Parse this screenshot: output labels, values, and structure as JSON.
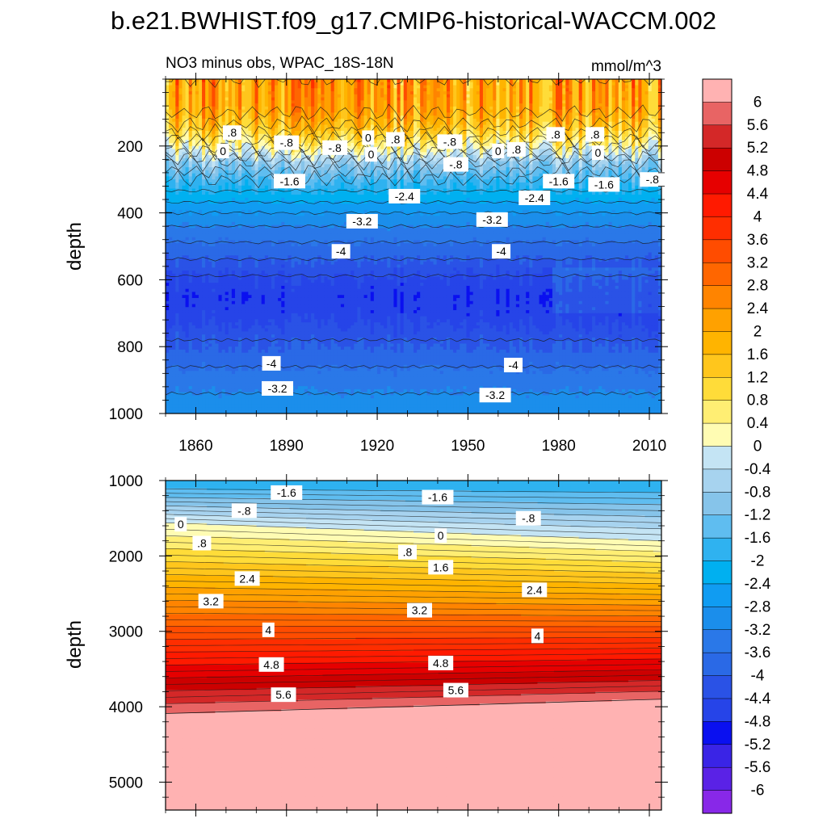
{
  "title": "b.e21.BWHIST.f09_g17.CMIP6-historical-WACCM.002",
  "subtitle_left": "NO3 minus obs, WPAC_18S-18N",
  "subtitle_right": "mmol/m^3",
  "chart_data": [
    {
      "type": "heatmap",
      "panel": "upper",
      "ylabel": "depth",
      "y_ticks": [
        200,
        400,
        600,
        800,
        1000
      ],
      "ylim": [
        0,
        1000
      ],
      "x_ticks": [
        "1860",
        "1890",
        "1920",
        "1950",
        "1980",
        "2010"
      ],
      "xlim": [
        1850,
        2014
      ],
      "y_profile": [
        {
          "depth": 50,
          "value": 2.2
        },
        {
          "depth": 100,
          "value": 2.0
        },
        {
          "depth": 150,
          "value": 1.4
        },
        {
          "depth": 200,
          "value": 0.4
        },
        {
          "depth": 250,
          "value": -0.8
        },
        {
          "depth": 300,
          "value": -1.6
        },
        {
          "depth": 350,
          "value": -2.2
        },
        {
          "depth": 400,
          "value": -2.8
        },
        {
          "depth": 450,
          "value": -3.3
        },
        {
          "depth": 500,
          "value": -3.7
        },
        {
          "depth": 550,
          "value": -4.1
        },
        {
          "depth": 600,
          "value": -4.5
        },
        {
          "depth": 650,
          "value": -4.7
        },
        {
          "depth": 700,
          "value": -4.6
        },
        {
          "depth": 750,
          "value": -4.3
        },
        {
          "depth": 800,
          "value": -4.0
        },
        {
          "depth": 850,
          "value": -3.7
        },
        {
          "depth": 900,
          "value": -3.4
        },
        {
          "depth": 950,
          "value": -3.1
        },
        {
          "depth": 1000,
          "value": -3.0
        }
      ],
      "contour_labels": [
        {
          "text": ".8",
          "x": 1872,
          "y": 160
        },
        {
          "text": "-.8",
          "x": 1890,
          "y": 190
        },
        {
          "text": "0",
          "x": 1869,
          "y": 215
        },
        {
          "text": "-.8",
          "x": 1906,
          "y": 205
        },
        {
          "text": "0",
          "x": 1917,
          "y": 175
        },
        {
          "text": ".8",
          "x": 1926,
          "y": 180
        },
        {
          "text": "0",
          "x": 1918,
          "y": 225
        },
        {
          "text": "-.8",
          "x": 1944,
          "y": 187
        },
        {
          "text": "-.8",
          "x": 1946,
          "y": 255
        },
        {
          "text": "0",
          "x": 1960,
          "y": 215
        },
        {
          "text": ".8",
          "x": 1966,
          "y": 210
        },
        {
          "text": ".8",
          "x": 1979,
          "y": 165
        },
        {
          "text": ".8",
          "x": 1992,
          "y": 165
        },
        {
          "text": "0",
          "x": 1993,
          "y": 220
        },
        {
          "text": "-1.6",
          "x": 1891,
          "y": 305
        },
        {
          "text": "-2.4",
          "x": 1929,
          "y": 350
        },
        {
          "text": "-1.6",
          "x": 1980,
          "y": 305
        },
        {
          "text": "-1.6",
          "x": 1995,
          "y": 315
        },
        {
          "text": "-.8",
          "x": 2011,
          "y": 300
        },
        {
          "text": "-2.4",
          "x": 1972,
          "y": 355
        },
        {
          "text": "-3.2",
          "x": 1915,
          "y": 425
        },
        {
          "text": "-3.2",
          "x": 1958,
          "y": 420
        },
        {
          "text": "-4",
          "x": 1908,
          "y": 515
        },
        {
          "text": "-4",
          "x": 1961,
          "y": 515
        },
        {
          "text": "-4",
          "x": 1885,
          "y": 850
        },
        {
          "text": "-4",
          "x": 1965,
          "y": 855
        },
        {
          "text": "-3.2",
          "x": 1887,
          "y": 925
        },
        {
          "text": "-3.2",
          "x": 1959,
          "y": 945
        }
      ]
    },
    {
      "type": "heatmap",
      "panel": "lower",
      "ylabel": "depth",
      "y_ticks": [
        1000,
        2000,
        3000,
        4000,
        5000
      ],
      "ylim": [
        1000,
        5370
      ],
      "x_ticks": [
        "1860",
        "1890",
        "1920",
        "1950",
        "1980",
        "2010"
      ],
      "xlim": [
        1850,
        2014
      ],
      "zero_line_depth": {
        "start": 1560,
        "end": 1800
      },
      "deep_boundary_depth": {
        "start": 4090,
        "end": 3900
      },
      "contour_labels": [
        {
          "text": "-1.6",
          "x": 1890,
          "y": 1160
        },
        {
          "text": "-1.6",
          "x": 1940,
          "y": 1220
        },
        {
          "text": "-.8",
          "x": 1876,
          "y": 1400
        },
        {
          "text": "-.8",
          "x": 1970,
          "y": 1500
        },
        {
          "text": "0",
          "x": 1855,
          "y": 1580
        },
        {
          "text": "0",
          "x": 1941,
          "y": 1730
        },
        {
          "text": ".8",
          "x": 1862,
          "y": 1830
        },
        {
          "text": ".8",
          "x": 1930,
          "y": 1950
        },
        {
          "text": "1.6",
          "x": 1941,
          "y": 2150
        },
        {
          "text": "2.4",
          "x": 1877,
          "y": 2300
        },
        {
          "text": "2.4",
          "x": 1972,
          "y": 2450
        },
        {
          "text": "3.2",
          "x": 1865,
          "y": 2600
        },
        {
          "text": "3.2",
          "x": 1934,
          "y": 2720
        },
        {
          "text": "4",
          "x": 1884,
          "y": 2980
        },
        {
          "text": "4",
          "x": 1973,
          "y": 3060
        },
        {
          "text": "4.8",
          "x": 1885,
          "y": 3440
        },
        {
          "text": "4.8",
          "x": 1941,
          "y": 3420
        },
        {
          "text": "5.6",
          "x": 1889,
          "y": 3840
        },
        {
          "text": "5.6",
          "x": 1946,
          "y": 3780
        }
      ]
    }
  ],
  "colorbar": {
    "labels": [
      "6",
      "5.6",
      "5.2",
      "4.8",
      "4.4",
      "4",
      "3.6",
      "3.2",
      "2.8",
      "2.4",
      "2",
      "1.6",
      "1.2",
      "0.8",
      "0.4",
      "0",
      "-0.4",
      "-0.8",
      "-1.2",
      "-1.6",
      "-2",
      "-2.4",
      "-2.8",
      "-3.2",
      "-3.6",
      "-4",
      "-4.4",
      "-4.8",
      "-5.2",
      "-5.6",
      "-6"
    ],
    "colors": [
      "#ffb2b2",
      "#e86464",
      "#d42828",
      "#cc0000",
      "#e60000",
      "#ff1a00",
      "#ff2e00",
      "#ff4c00",
      "#ff6600",
      "#ff8400",
      "#ffa100",
      "#ffb400",
      "#ffc61c",
      "#ffdc39",
      "#ffee73",
      "#fffcb3",
      "#c4e4f4",
      "#a7d3ef",
      "#86c4ea",
      "#5fbdf0",
      "#2fb2f0",
      "#00b0f0",
      "#109cf2",
      "#1b8eeb",
      "#2a78e8",
      "#2a69e6",
      "#2a52e6",
      "#2644e8",
      "#0a10f0",
      "#3a24e6",
      "#5a22e6",
      "#8828e8"
    ]
  }
}
